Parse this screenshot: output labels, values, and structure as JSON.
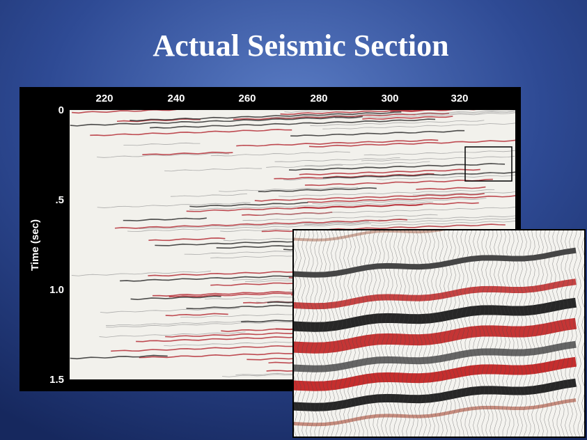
{
  "title": "Actual Seismic Section",
  "section": {
    "x_ticks": [
      "220",
      "240",
      "260",
      "280",
      "300",
      "320"
    ],
    "y_label": "Time (sec)",
    "y_ticks": [
      "0",
      ".5",
      "1.0",
      "1.5"
    ]
  }
}
